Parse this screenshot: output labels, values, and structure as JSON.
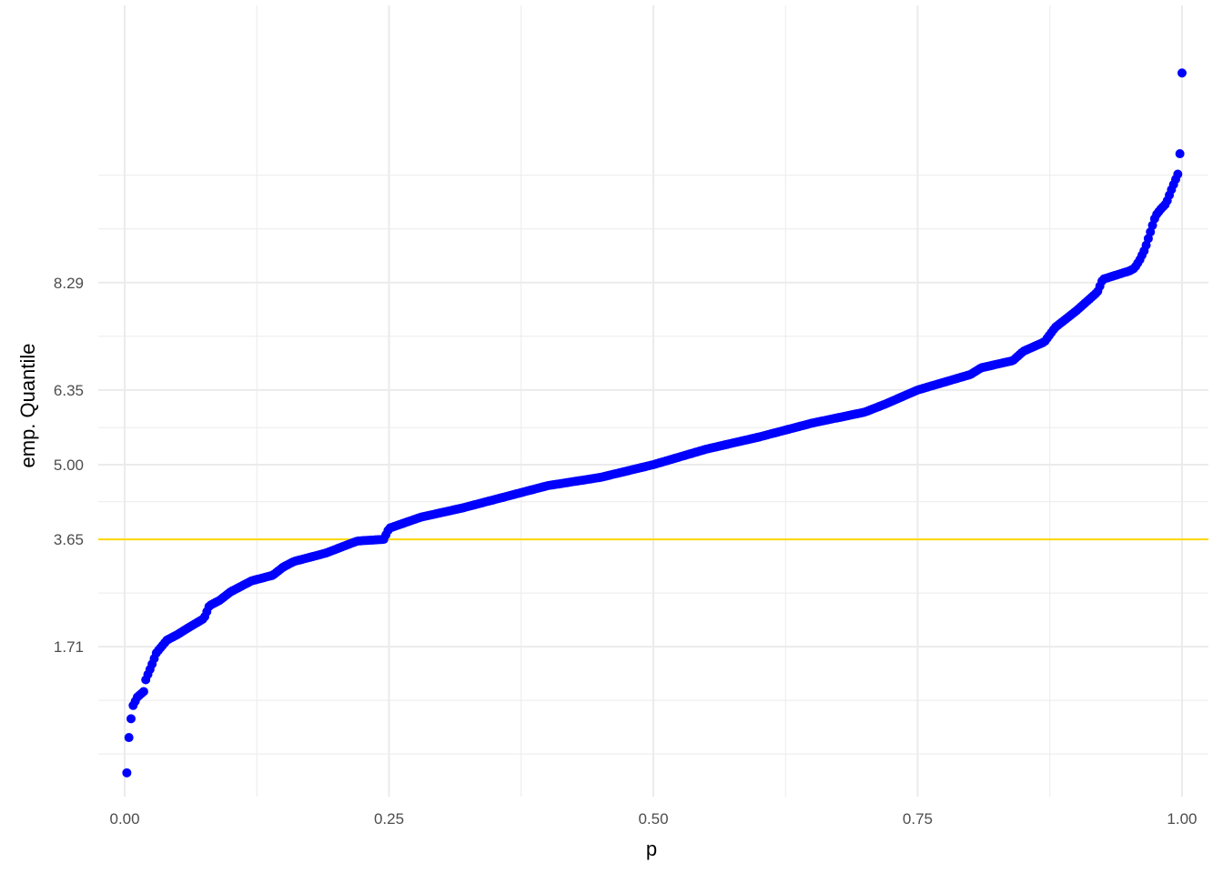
{
  "chart_data": {
    "type": "scatter",
    "title": "",
    "xlabel": "p",
    "ylabel": "emp. Quantile",
    "xlim": [
      -0.025,
      1.025
    ],
    "ylim": [
      -1.0,
      13.3
    ],
    "x_ticks": [
      0,
      0.25,
      0.5,
      0.75,
      1.0
    ],
    "x_tick_labels": [
      "0.00",
      "0.25",
      "0.50",
      "0.75",
      "1.00"
    ],
    "y_ticks": [
      1.71,
      3.65,
      5.0,
      6.35,
      8.29
    ],
    "y_tick_labels": [
      "1.71",
      "3.65",
      "5.00",
      "6.35",
      "8.29"
    ],
    "y_minor_gridlines": [
      -0.23,
      0.74,
      2.68,
      4.33,
      5.67,
      7.32,
      9.26,
      10.23
    ],
    "grid": true,
    "reference_line": {
      "axis": "y",
      "value": 3.65,
      "color": "#FFD700"
    },
    "point_color": "#0000FF",
    "point_count": 500,
    "quantile_curve": {
      "p": [
        0.002,
        0.004,
        0.006,
        0.008,
        0.012,
        0.018,
        0.02,
        0.025,
        0.03,
        0.04,
        0.05,
        0.06,
        0.075,
        0.08,
        0.09,
        0.1,
        0.12,
        0.14,
        0.15,
        0.16,
        0.19,
        0.22,
        0.245,
        0.25,
        0.28,
        0.32,
        0.36,
        0.4,
        0.45,
        0.5,
        0.55,
        0.6,
        0.65,
        0.7,
        0.72,
        0.75,
        0.8,
        0.81,
        0.84,
        0.85,
        0.87,
        0.88,
        0.9,
        0.92,
        0.925,
        0.95,
        0.955,
        0.96,
        0.965,
        0.97,
        0.975,
        0.98,
        0.985,
        0.99,
        0.996
      ],
      "q": [
        -0.57,
        0.07,
        0.41,
        0.65,
        0.8,
        0.9,
        1.12,
        1.35,
        1.6,
        1.83,
        1.93,
        2.05,
        2.22,
        2.45,
        2.55,
        2.7,
        2.9,
        3.0,
        3.15,
        3.25,
        3.4,
        3.62,
        3.65,
        3.85,
        4.05,
        4.22,
        4.42,
        4.62,
        4.77,
        5.0,
        5.28,
        5.5,
        5.75,
        5.95,
        6.1,
        6.35,
        6.63,
        6.75,
        6.88,
        7.05,
        7.22,
        7.48,
        7.78,
        8.12,
        8.35,
        8.5,
        8.55,
        8.7,
        8.9,
        9.2,
        9.5,
        9.62,
        9.72,
        9.97,
        10.25
      ]
    },
    "outlier_points": [
      {
        "p": 0.998,
        "q": 10.62
      },
      {
        "p": 1.0,
        "q": 12.08
      }
    ]
  }
}
